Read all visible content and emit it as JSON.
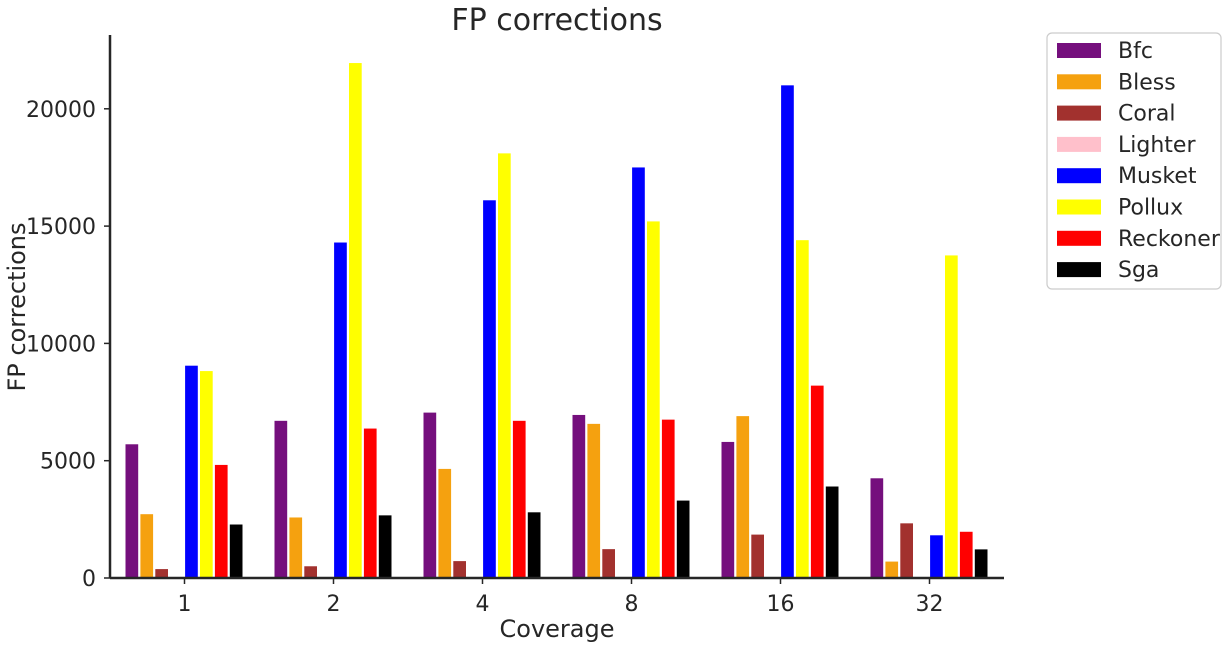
{
  "chart_data": {
    "type": "bar",
    "title": "FP corrections",
    "xlabel": "Coverage",
    "ylabel": "FP corrections",
    "categories": [
      "1",
      "2",
      "4",
      "8",
      "16",
      "32"
    ],
    "ylim": [
      0,
      23000
    ],
    "yticks": [
      0,
      5000,
      10000,
      15000,
      20000
    ],
    "grid": false,
    "legend_position": "outside-top-right",
    "series": [
      {
        "name": "Bfc",
        "color": "#750f7d",
        "values": [
          5700,
          6700,
          7050,
          6950,
          5800,
          4250
        ]
      },
      {
        "name": "Bless",
        "color": "#f5a10f",
        "values": [
          2720,
          2580,
          4650,
          6570,
          6900,
          700
        ]
      },
      {
        "name": "Coral",
        "color": "#a2312e",
        "values": [
          380,
          500,
          720,
          1230,
          1850,
          2330
        ]
      },
      {
        "name": "Lighter",
        "color": "#ffc0cb",
        "values": [
          0,
          0,
          0,
          0,
          0,
          0
        ]
      },
      {
        "name": "Musket",
        "color": "#0000ff",
        "values": [
          9050,
          14300,
          16100,
          17500,
          21000,
          1820
        ]
      },
      {
        "name": "Pollux",
        "color": "#ffff00",
        "values": [
          8820,
          21950,
          18100,
          15200,
          14400,
          13750
        ]
      },
      {
        "name": "Reckoner",
        "color": "#ff0000",
        "values": [
          4820,
          6370,
          6700,
          6750,
          8200,
          1970
        ]
      },
      {
        "name": "Sga",
        "color": "#000000",
        "values": [
          2280,
          2670,
          2800,
          3300,
          3900,
          1220
        ]
      }
    ]
  }
}
